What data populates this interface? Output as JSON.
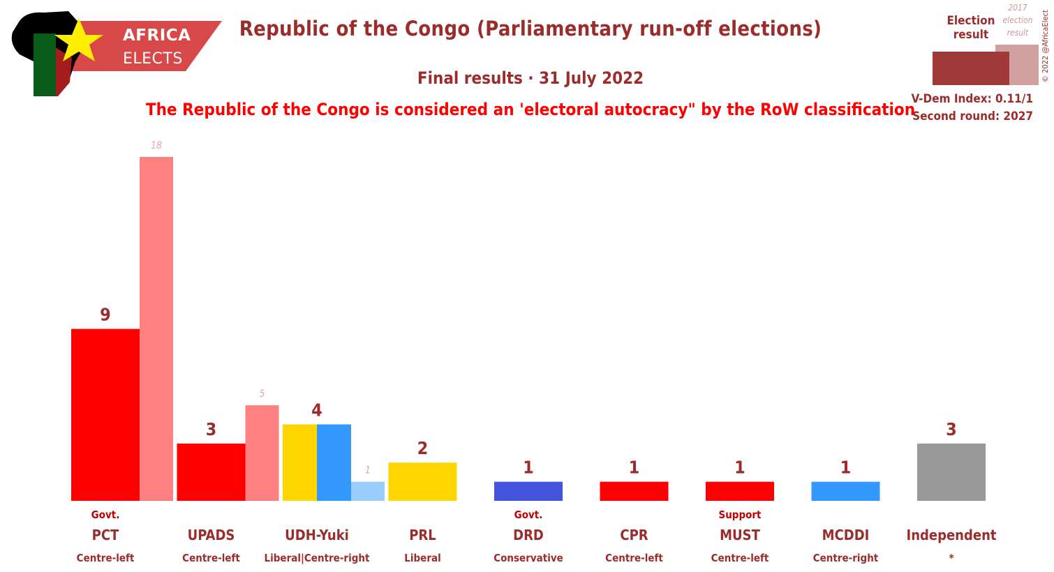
{
  "logo": {
    "line1": "AFRICA",
    "line2": "ELECTS"
  },
  "header": {
    "title": "Republic of the Congo (Parliamentary run-off elections)",
    "subtitle": "Final results · 31 July 2022",
    "note": "The Republic of the Congo is considered an 'electoral autocracy\" by the RoW classification"
  },
  "legend": {
    "current_label": "Election result",
    "previous_label": "2017 election result",
    "current_color": "#a03a3a",
    "previous_color": "#d3a0a0"
  },
  "info": {
    "vdem": "V-Dem Index: 0.11/1",
    "second_round": "Second round: 2027"
  },
  "copyright": "© 2022 @AfricaElect",
  "colors": {
    "title": "#9b2c2c",
    "note": "#ff0000",
    "status": "#c00000"
  },
  "chart_data": {
    "type": "bar",
    "ylim": [
      0,
      18
    ],
    "categories": [
      "PCT",
      "UPADS",
      "UDH-Yuki",
      "PRL",
      "DRD",
      "CPR",
      "MUST",
      "MCDDI",
      "Independent"
    ],
    "ideologies": [
      "Centre-left",
      "Centre-left",
      "Liberal|Centre-right",
      "Liberal",
      "Conservative",
      "Centre-left",
      "Centre-left",
      "Centre-right",
      "*"
    ],
    "status": [
      "Govt.",
      "",
      "",
      "",
      "Govt.",
      "",
      "Support",
      "",
      ""
    ],
    "series": [
      {
        "name": "Election result",
        "values": [
          9,
          3,
          4,
          2,
          1,
          1,
          1,
          1,
          3
        ]
      },
      {
        "name": "2017 election result",
        "values": [
          18,
          5,
          1,
          null,
          null,
          null,
          null,
          null,
          null
        ]
      }
    ],
    "bar_colors": [
      [
        "#ff0000"
      ],
      [
        "#ff0000"
      ],
      [
        "#ffd500",
        "#3399ff"
      ],
      [
        "#ffd500"
      ],
      [
        "#4455dd"
      ],
      [
        "#ff0000"
      ],
      [
        "#ff0000"
      ],
      [
        "#3399ff"
      ],
      [
        "#999999"
      ]
    ],
    "previous_colors": [
      "#ff8080",
      "#ff8080",
      "#99ccff",
      null,
      null,
      null,
      null,
      null,
      null
    ]
  }
}
